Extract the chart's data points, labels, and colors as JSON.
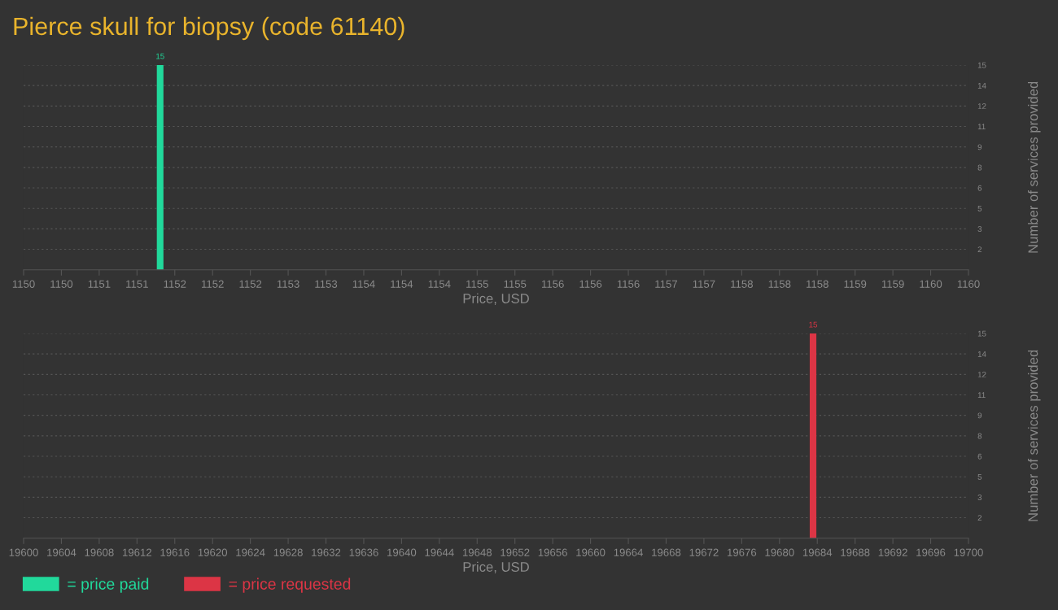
{
  "chart_data": [
    {
      "type": "histogram",
      "title": "Pierce skull for biopsy (code 61140)",
      "xlabel": "Price, USD",
      "ylabel": "Number of services provided",
      "bins": [
        1151.41,
        1151.48
      ],
      "series": [
        {
          "name": "= price paid",
          "color": "#21d99b",
          "values": [
            15
          ]
        }
      ],
      "xlim": [
        1150,
        1160
      ],
      "xticks": [
        1150,
        {
          "value": 1150.4,
          "label": "1150"
        },
        {
          "value": 1150.8,
          "label": "1151"
        },
        {
          "value": 1151.2,
          "label": "1151"
        },
        {
          "value": 1151.6,
          "label": "1152"
        },
        1152,
        {
          "value": 1152.4,
          "label": "1152"
        },
        {
          "value": 1152.8,
          "label": "1153"
        },
        {
          "value": 1153.2,
          "label": "1153"
        },
        {
          "value": 1153.6,
          "label": "1154"
        },
        1154,
        {
          "value": 1154.4,
          "label": "1154"
        },
        {
          "value": 1154.8,
          "label": "1155"
        },
        {
          "value": 1155.2,
          "label": "1155"
        },
        {
          "value": 1155.6,
          "label": "1156"
        },
        1156,
        {
          "value": 1156.4,
          "label": "1156"
        },
        {
          "value": 1156.8,
          "label": "1157"
        },
        {
          "value": 1157.2,
          "label": "1157"
        },
        {
          "value": 1157.6,
          "label": "1158"
        },
        1158,
        {
          "value": 1158.4,
          "label": "1158"
        },
        {
          "value": 1158.8,
          "label": "1159"
        },
        {
          "value": 1159.2,
          "label": "1159"
        },
        {
          "value": 1159.6,
          "label": "1160"
        },
        1160
      ],
      "ylim": [
        0,
        15
      ],
      "yticks": [
        {
          "value": 1.5,
          "label": "2"
        },
        3,
        {
          "value": 4.5,
          "label": "5"
        },
        6,
        {
          "value": 7.5,
          "label": "8"
        },
        9,
        {
          "value": 10.5,
          "label": "11"
        },
        12,
        {
          "value": 13.5,
          "label": "14"
        },
        15
      ],
      "grid": "y",
      "data_labels": true,
      "legend": "bottom left"
    },
    {
      "type": "histogram",
      "xlabel": "Price, USD",
      "ylabel": "Number of services provided",
      "bins": [
        19683.2,
        19683.9
      ],
      "series": [
        {
          "name": "= price requested",
          "color": "#dc3545",
          "values": [
            15
          ]
        }
      ],
      "xlim": [
        19600,
        19700
      ],
      "xticks": [
        19600,
        19604,
        19608,
        19612,
        19616,
        19620,
        19624,
        19628,
        19632,
        19636,
        19640,
        19644,
        19648,
        19652,
        19656,
        19660,
        19664,
        19668,
        19672,
        19676,
        19680,
        19684,
        19688,
        19692,
        19696,
        19700
      ],
      "ylim": [
        0,
        15
      ],
      "yticks": [
        {
          "value": 1.5,
          "label": "2"
        },
        3,
        {
          "value": 4.5,
          "label": "5"
        },
        6,
        {
          "value": 7.5,
          "label": "8"
        },
        9,
        {
          "value": 10.5,
          "label": "11"
        },
        12,
        {
          "value": 13.5,
          "label": "14"
        },
        15
      ],
      "grid": "y",
      "data_labels": true,
      "legend": "bottom left"
    }
  ]
}
